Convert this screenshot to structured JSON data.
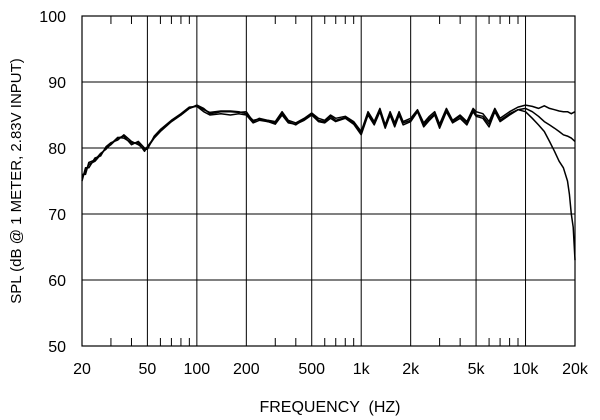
{
  "chart_data": {
    "type": "line",
    "title": "",
    "xlabel": "FREQUENCY  (HZ)",
    "ylabel": "SPL (dB @ 1 METER, 2.83V INPUT)",
    "x_scale": "log",
    "xlim": [
      20,
      20000
    ],
    "ylim": [
      50,
      100
    ],
    "grid": true,
    "legend": "none",
    "x_ticks": [
      20,
      50,
      100,
      200,
      500,
      1000,
      2000,
      5000,
      10000,
      20000
    ],
    "x_tick_labels": [
      "20",
      "50",
      "100",
      "200",
      "500",
      "1k",
      "2k",
      "5k",
      "10k",
      "20k"
    ],
    "minor_x_ticks": [
      30,
      40,
      60,
      70,
      80,
      90,
      300,
      400,
      600,
      700,
      800,
      900,
      3000,
      4000,
      6000,
      7000,
      8000,
      9000
    ],
    "y_ticks": [
      50,
      60,
      70,
      80,
      90,
      100
    ],
    "y_tick_labels": [
      "50",
      "60",
      "70",
      "80",
      "90",
      "100"
    ],
    "series": [
      {
        "x": [
          20,
          21,
          22,
          24,
          26,
          28,
          30,
          33,
          36,
          40,
          44,
          48,
          50,
          55,
          60,
          70,
          80,
          90,
          100,
          110,
          120,
          140,
          160,
          180,
          200,
          220,
          240,
          270,
          300,
          330,
          360,
          400,
          450,
          500,
          550,
          600,
          650,
          700,
          800,
          900,
          1000,
          1100,
          1200,
          1300,
          1400,
          1500,
          1600,
          1700,
          1800,
          2000,
          2200,
          2400,
          2600,
          2800,
          3000,
          3300,
          3600,
          4000,
          4400,
          4800,
          5000,
          5500,
          6000,
          6500,
          7000,
          8000,
          9000,
          10000,
          11000,
          12000,
          13000,
          14000,
          15000,
          16000,
          17000,
          18000,
          19000,
          20000
        ],
        "values": [
          75.5,
          76.5,
          77.5,
          78.0,
          79.0,
          80.0,
          80.5,
          81.5,
          81.8,
          80.5,
          81.0,
          80.0,
          80.0,
          81.5,
          82.5,
          84.0,
          85.0,
          86.0,
          86.5,
          86.0,
          85.2,
          85.5,
          85.5,
          85.4,
          85.5,
          84.0,
          84.5,
          84.2,
          84.0,
          85.5,
          84.2,
          83.8,
          84.5,
          85.3,
          84.5,
          84.2,
          85.0,
          84.5,
          84.8,
          84.0,
          82.5,
          85.5,
          84.0,
          86.0,
          83.5,
          85.5,
          83.8,
          85.5,
          84.0,
          84.5,
          85.8,
          83.8,
          84.8,
          85.5,
          83.6,
          86.0,
          84.2,
          85.0,
          84.0,
          86.0,
          85.5,
          85.2,
          84.0,
          86.0,
          84.5,
          85.5,
          86.2,
          86.5,
          86.3,
          86.0,
          86.4,
          86.0,
          85.8,
          85.6,
          85.5,
          85.5,
          85.2,
          85.5
        ]
      },
      {
        "x": [
          20,
          21,
          22,
          24,
          26,
          28,
          30,
          33,
          36,
          40,
          44,
          48,
          50,
          55,
          60,
          70,
          80,
          90,
          100,
          110,
          120,
          140,
          160,
          180,
          200,
          220,
          240,
          270,
          300,
          330,
          360,
          400,
          450,
          500,
          550,
          600,
          650,
          700,
          800,
          900,
          1000,
          1100,
          1200,
          1300,
          1400,
          1500,
          1600,
          1700,
          1800,
          2000,
          2200,
          2400,
          2600,
          2800,
          3000,
          3300,
          3600,
          4000,
          4400,
          4800,
          5000,
          5500,
          6000,
          6500,
          7000,
          8000,
          9000,
          10000,
          11000,
          12000,
          13000,
          14000,
          15000,
          16000,
          17000,
          18000,
          19000,
          20000
        ],
        "values": [
          75.0,
          77.0,
          77.0,
          78.5,
          78.8,
          80.2,
          80.8,
          81.2,
          82.0,
          81.0,
          80.5,
          79.8,
          79.8,
          81.8,
          82.8,
          84.2,
          85.2,
          86.2,
          86.3,
          85.5,
          85.0,
          85.2,
          85.0,
          85.2,
          85.0,
          83.8,
          84.2,
          84.0,
          83.6,
          85.0,
          83.8,
          83.6,
          84.2,
          85.0,
          84.0,
          83.8,
          84.5,
          84.0,
          84.5,
          83.6,
          82.0,
          85.0,
          83.5,
          85.5,
          83.0,
          85.0,
          83.2,
          85.0,
          83.5,
          84.0,
          85.5,
          83.2,
          84.2,
          85.0,
          83.0,
          85.5,
          83.8,
          84.5,
          83.5,
          85.5,
          84.8,
          84.5,
          83.2,
          85.5,
          84.0,
          85.0,
          85.8,
          86.0,
          85.5,
          84.8,
          84.0,
          83.5,
          83.0,
          82.5,
          82.0,
          81.8,
          81.5,
          81.0
        ]
      },
      {
        "x": [
          20,
          21,
          22,
          24,
          26,
          28,
          30,
          33,
          36,
          40,
          44,
          48,
          50,
          55,
          60,
          70,
          80,
          90,
          100,
          110,
          120,
          140,
          160,
          180,
          200,
          220,
          240,
          270,
          300,
          330,
          360,
          400,
          450,
          500,
          550,
          600,
          650,
          700,
          800,
          900,
          1000,
          1100,
          1200,
          1300,
          1400,
          1500,
          1600,
          1700,
          1800,
          2000,
          2200,
          2400,
          2600,
          2800,
          3000,
          3300,
          3600,
          4000,
          4400,
          4800,
          5000,
          5500,
          6000,
          6500,
          7000,
          8000,
          9000,
          10000,
          11000,
          12000,
          13000,
          14000,
          15000,
          16000,
          17000,
          18000,
          18500,
          19000,
          19500,
          20000
        ],
        "values": [
          76.0,
          76.0,
          77.8,
          78.2,
          79.2,
          79.8,
          80.6,
          81.6,
          81.5,
          80.8,
          80.8,
          79.5,
          80.2,
          81.6,
          82.6,
          84.0,
          85.0,
          86.0,
          86.4,
          85.8,
          85.4,
          85.6,
          85.6,
          85.5,
          85.2,
          84.2,
          84.4,
          84.0,
          83.8,
          85.2,
          84.0,
          83.5,
          84.4,
          85.2,
          84.2,
          84.0,
          84.8,
          84.2,
          84.6,
          83.8,
          82.2,
          85.2,
          83.8,
          85.6,
          83.2,
          85.2,
          83.5,
          85.2,
          83.8,
          84.2,
          85.6,
          83.5,
          84.5,
          85.2,
          83.3,
          85.8,
          84.0,
          84.8,
          83.8,
          85.8,
          85.0,
          84.8,
          83.6,
          85.6,
          84.2,
          85.2,
          85.8,
          85.5,
          84.5,
          83.5,
          82.5,
          81.0,
          79.5,
          78.0,
          77.0,
          75.0,
          73.0,
          70.0,
          68.0,
          63.0
        ]
      }
    ]
  }
}
